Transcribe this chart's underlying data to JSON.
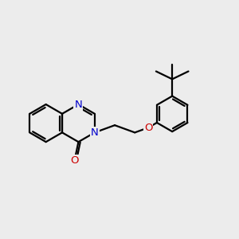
{
  "background_color": "#ececec",
  "bond_color": "#000000",
  "N_color": "#0000cc",
  "O_color": "#cc0000",
  "lw": 1.6,
  "figsize": [
    3.0,
    3.0
  ],
  "dpi": 100,
  "xlim": [
    -0.3,
    8.7
  ],
  "ylim": [
    -0.8,
    6.2
  ]
}
